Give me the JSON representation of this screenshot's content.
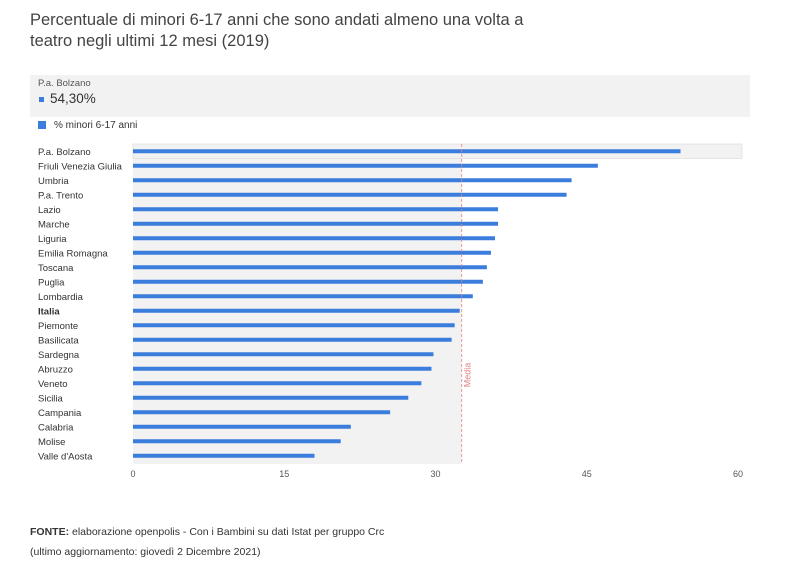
{
  "title": "Percentuale di minori 6-17 anni che sono andati almeno una volta a teatro negli ultimi 12 mesi (2019)",
  "tooltip": {
    "category": "P.a. Bolzano",
    "value": "54,30%"
  },
  "colors": {
    "bar": "#3b7ddd",
    "median": "#e08080",
    "plot_bg": "#f2f2f2"
  },
  "footer": {
    "source_label": "FONTE:",
    "source_text": " elaborazione openpolis - Con i Bambini su dati Istat per gruppo Crc",
    "updated": "(ultimo aggiornamento: giovedì 2 Dicembre 2021)"
  },
  "chart_data": {
    "type": "bar",
    "orientation": "horizontal",
    "categories": [
      "P.a. Bolzano",
      "Friuli Venezia Giulia",
      "Umbria",
      "P.a. Trento",
      "Lazio",
      "Marche",
      "Liguria",
      "Emilia Romagna",
      "Toscana",
      "Puglia",
      "Lombardia",
      "Italia",
      "Piemonte",
      "Basilicata",
      "Sardegna",
      "Abruzzo",
      "Veneto",
      "Sicilia",
      "Campania",
      "Calabria",
      "Molise",
      "Valle d'Aosta"
    ],
    "bold_categories": [
      "Italia"
    ],
    "series": [
      {
        "name": "% minori 6-17 anni",
        "values": [
          54.3,
          46.1,
          43.5,
          43.0,
          36.2,
          36.2,
          35.9,
          35.5,
          35.1,
          34.7,
          33.7,
          32.4,
          31.9,
          31.6,
          29.8,
          29.6,
          28.6,
          27.3,
          25.5,
          21.6,
          20.6,
          18.0
        ]
      }
    ],
    "xlim": [
      0,
      60
    ],
    "xticks": [
      0,
      15,
      30,
      45,
      60
    ],
    "median": {
      "label": "Media",
      "value": 32.6
    },
    "highlighted": "P.a. Bolzano",
    "legend_position": "top-left",
    "grid": false
  }
}
